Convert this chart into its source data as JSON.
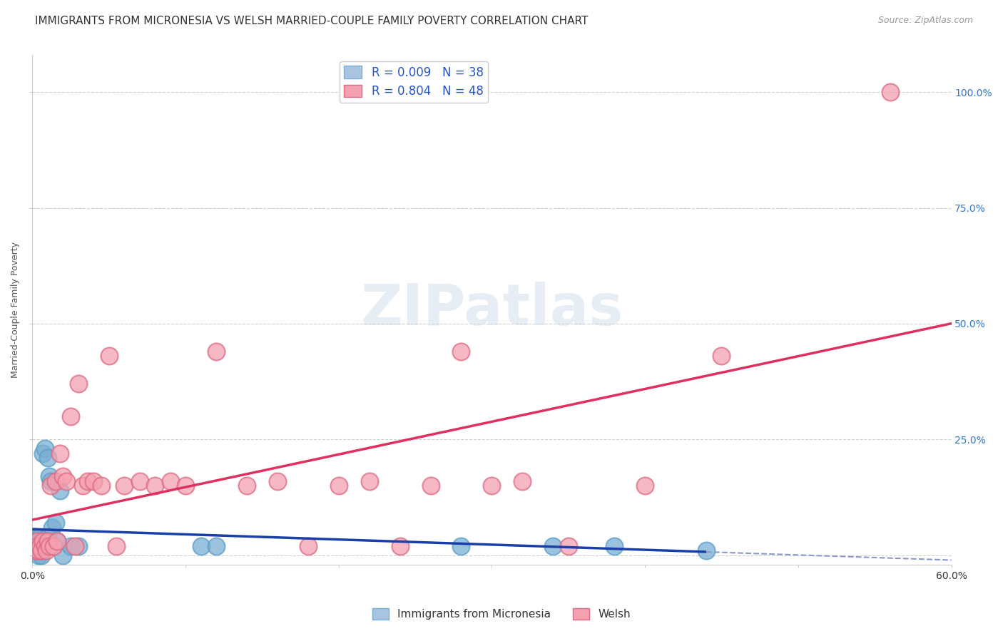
{
  "title": "IMMIGRANTS FROM MICRONESIA VS WELSH MARRIED-COUPLE FAMILY POVERTY CORRELATION CHART",
  "source": "Source: ZipAtlas.com",
  "ylabel": "Married-Couple Family Poverty",
  "xlim": [
    0.0,
    0.6
  ],
  "ylim": [
    -0.02,
    1.08
  ],
  "series1_color": "#7bafd4",
  "series1_edge": "#5a9ec8",
  "series2_color": "#f4a0b0",
  "series2_edge": "#e06880",
  "line1_color": "#1a3faa",
  "line2_color": "#e03060",
  "line1_dashed_color": "#8899cc",
  "watermark": "ZIPatlas",
  "background_color": "#ffffff",
  "grid_color": "#d0d0d0",
  "right_tick_color": "#3377cc",
  "title_fontsize": 11,
  "axis_label_fontsize": 9,
  "tick_fontsize": 10,
  "legend1_label1": "R = 0.009   N = 38",
  "legend1_label2": "R = 0.804   N = 48",
  "legend2_label1": "Immigrants from Micronesia",
  "legend2_label2": "Welsh",
  "micronesia_x": [
    0.001,
    0.001,
    0.002,
    0.002,
    0.002,
    0.003,
    0.003,
    0.003,
    0.004,
    0.004,
    0.004,
    0.005,
    0.005,
    0.005,
    0.006,
    0.006,
    0.007,
    0.007,
    0.008,
    0.008,
    0.009,
    0.01,
    0.01,
    0.011,
    0.012,
    0.013,
    0.015,
    0.016,
    0.018,
    0.02,
    0.025,
    0.03,
    0.11,
    0.12,
    0.28,
    0.34,
    0.38,
    0.44
  ],
  "micronesia_y": [
    0.03,
    0.04,
    0.02,
    0.03,
    0.04,
    0.01,
    0.02,
    0.03,
    0.0,
    0.01,
    0.03,
    0.02,
    0.03,
    0.04,
    0.0,
    0.01,
    0.02,
    0.22,
    0.23,
    0.03,
    0.02,
    0.21,
    0.04,
    0.17,
    0.16,
    0.06,
    0.07,
    0.03,
    0.14,
    0.0,
    0.02,
    0.02,
    0.02,
    0.02,
    0.02,
    0.02,
    0.02,
    0.01
  ],
  "welsh_x": [
    0.001,
    0.002,
    0.003,
    0.003,
    0.004,
    0.005,
    0.006,
    0.007,
    0.008,
    0.009,
    0.01,
    0.011,
    0.012,
    0.014,
    0.015,
    0.016,
    0.018,
    0.02,
    0.022,
    0.025,
    0.028,
    0.03,
    0.033,
    0.036,
    0.04,
    0.045,
    0.05,
    0.055,
    0.06,
    0.07,
    0.08,
    0.09,
    0.1,
    0.12,
    0.14,
    0.16,
    0.18,
    0.2,
    0.22,
    0.24,
    0.26,
    0.28,
    0.3,
    0.32,
    0.35,
    0.4,
    0.45,
    0.56
  ],
  "welsh_y": [
    0.02,
    0.01,
    0.03,
    0.02,
    0.01,
    0.02,
    0.01,
    0.03,
    0.02,
    0.01,
    0.03,
    0.02,
    0.15,
    0.02,
    0.16,
    0.03,
    0.22,
    0.17,
    0.16,
    0.3,
    0.02,
    0.37,
    0.15,
    0.16,
    0.16,
    0.15,
    0.43,
    0.02,
    0.15,
    0.16,
    0.15,
    0.16,
    0.15,
    0.44,
    0.15,
    0.16,
    0.02,
    0.15,
    0.16,
    0.02,
    0.15,
    0.44,
    0.15,
    0.16,
    0.02,
    0.15,
    0.43,
    1.0
  ],
  "line1_x_solid_end": 0.44,
  "line1_x_dashed_start": 0.44,
  "line1_x_dashed_end": 0.6
}
